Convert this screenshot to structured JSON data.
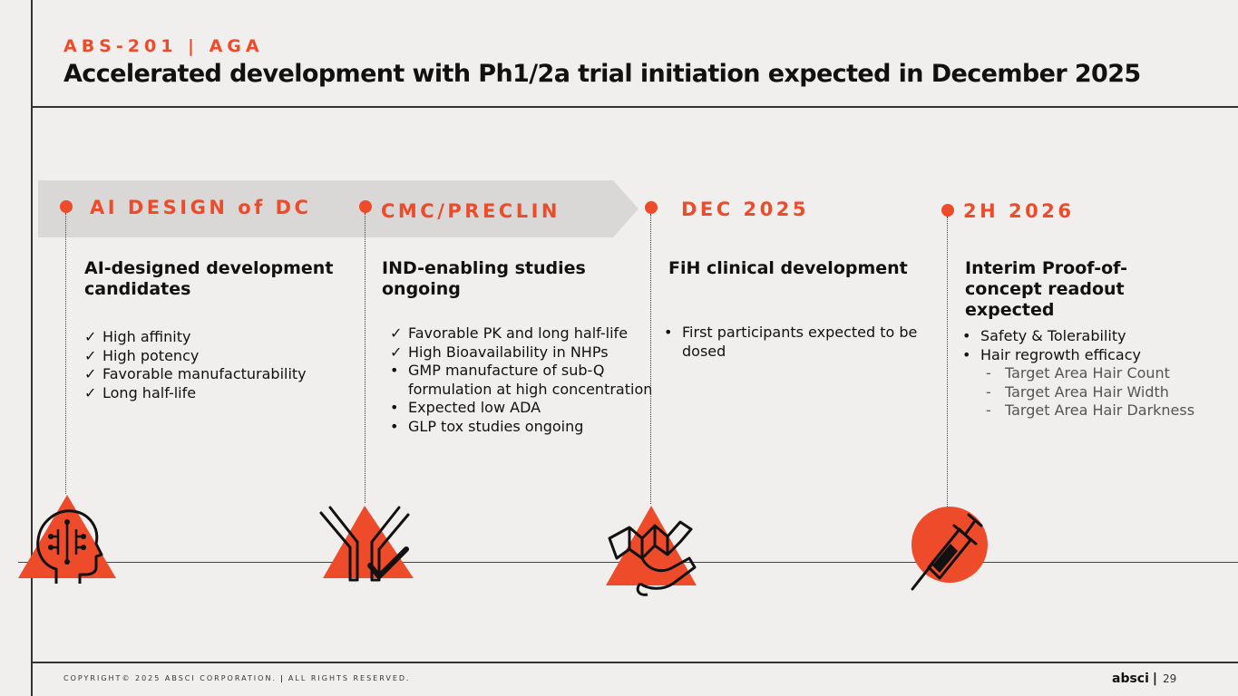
{
  "header": {
    "eyebrow": "ABS-201 | AGA",
    "title": "Accelerated development with Ph1/2a trial initiation expected in December 2025"
  },
  "colors": {
    "accent": "#ee4b2b",
    "banner": "#d9d8d6",
    "text": "#111111"
  },
  "phases": [
    {
      "label": "AI DESIGN of DC",
      "heading": "AI-designed development candidates",
      "bullets": [
        {
          "marker": "✓",
          "text": "High affinity"
        },
        {
          "marker": "✓",
          "text": "High potency"
        },
        {
          "marker": "✓",
          "text": "Favorable manufacturability"
        },
        {
          "marker": "✓",
          "text": "Long half-life"
        }
      ],
      "icon": "ai-head-icon"
    },
    {
      "label": "CMC/PRECLIN",
      "heading": "IND-enabling studies ongoing",
      "bullets": [
        {
          "marker": "✓",
          "text": "Favorable PK and long half-life"
        },
        {
          "marker": "✓",
          "text": "High Bioavailability in NHPs"
        },
        {
          "marker": "•",
          "text": "GMP manufacture of sub-Q formulation at high concentration"
        },
        {
          "marker": "•",
          "text": "Expected low ADA"
        },
        {
          "marker": "•",
          "text": "GLP tox studies ongoing"
        }
      ],
      "icon": "antibody-check-icon"
    },
    {
      "label": "DEC 2025",
      "heading": "FiH clinical development",
      "bullets": [
        {
          "marker": "•",
          "text": "First participants expected to be dosed"
        }
      ],
      "icon": "dna-ribbon-icon"
    },
    {
      "label": "2H 2026",
      "heading": "Interim Proof-of-concept readout expected",
      "bullets": [
        {
          "marker": "•",
          "text": "Safety & Tolerability"
        },
        {
          "marker": "•",
          "text": "Hair regrowth efficacy"
        }
      ],
      "sub_bullets": [
        {
          "marker": "-",
          "text": "Target Area Hair Count"
        },
        {
          "marker": "-",
          "text": "Target Area Hair Width"
        },
        {
          "marker": "-",
          "text": "Target Area Hair Darkness"
        }
      ],
      "icon": "syringe-icon"
    }
  ],
  "footer": {
    "copyright": "COPYRIGHT© 2025 ABSCI CORPORATION.",
    "separator": "|",
    "rights": "ALL RIGHTS RESERVED.",
    "logo": "absci",
    "logo_separator": "|",
    "page_number": "29"
  }
}
